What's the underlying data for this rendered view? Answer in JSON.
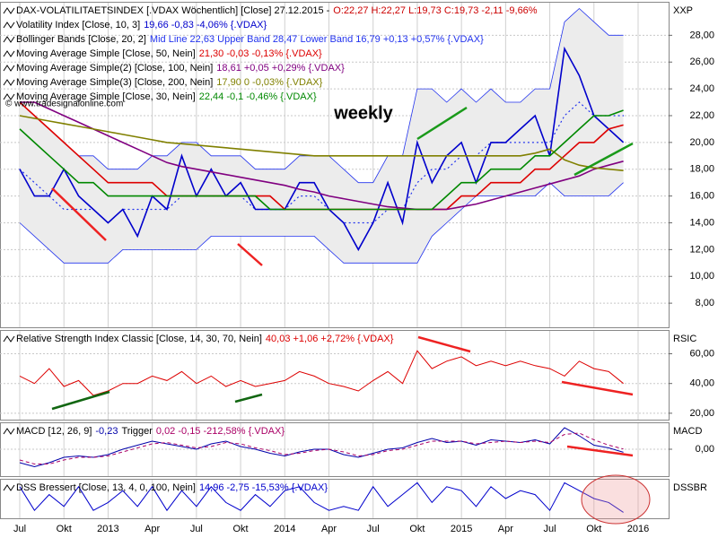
{
  "chart_data": [
    {
      "type": "line",
      "title": "DAX-VOLATILITAETSINDEX [.VDAX  Wöchentlich] [Close] 27.12.2015 -",
      "title_values": "O:22,27 H:22,27 L:19,73 C:19,73 -2,11 -9,66%",
      "axis_label": "XXP",
      "annotations": [
        "weekly",
        "© www.tradesignalonline.com"
      ],
      "grid": true,
      "ylim": [
        6.2,
        30.5
      ],
      "yticks": [
        {
          "value": 8,
          "label": "8,00"
        },
        {
          "value": 10,
          "label": "10,00"
        },
        {
          "value": 12,
          "label": "12,00"
        },
        {
          "value": 14,
          "label": "14,00"
        },
        {
          "value": 16,
          "label": "16,00"
        },
        {
          "value": 18,
          "label": "18,00"
        },
        {
          "value": 20,
          "label": "20,00"
        },
        {
          "value": 22,
          "label": "22,00"
        },
        {
          "value": 24,
          "label": "24,00"
        },
        {
          "value": 26,
          "label": "26,00"
        },
        {
          "value": 28,
          "label": "28,00"
        }
      ],
      "bands": {
        "name": "Bollinger Bands [Close, 20, 2]",
        "legend_values": "Mid Line 22,63 Upper Band 28,47 Lower Band 16,79 +0,13 +0,57% {.VDAX}",
        "color": "#2233ee",
        "fill": "#ececec",
        "upper": [
          23,
          22,
          21,
          20,
          19,
          19,
          18,
          18,
          18,
          19,
          19,
          20,
          20,
          19,
          19,
          19,
          18,
          18,
          18,
          19,
          19,
          19,
          18,
          17,
          17,
          19,
          19,
          24,
          24,
          23,
          24,
          23,
          24,
          23,
          23,
          24,
          24,
          29,
          30,
          29,
          28,
          28,
          null
        ],
        "lower": [
          14,
          13,
          12,
          11,
          11,
          11,
          11,
          12,
          12,
          12,
          12,
          12,
          12,
          13,
          13,
          13,
          13,
          13,
          13,
          13,
          13,
          12,
          11,
          11,
          11,
          11,
          11,
          11,
          13,
          14,
          15,
          16,
          16,
          16,
          16,
          16,
          17,
          16,
          16,
          16,
          16,
          17,
          null
        ],
        "mid": [
          18,
          17,
          16,
          15,
          15,
          15,
          14,
          15,
          15,
          15,
          15,
          16,
          16,
          16,
          16,
          16,
          15,
          15,
          15,
          16,
          16,
          15,
          14,
          14,
          14,
          15,
          15,
          17,
          18,
          18,
          19,
          19,
          20,
          20,
          20,
          20,
          20,
          22,
          23,
          22,
          22,
          22,
          null
        ]
      },
      "series": [
        {
          "name": "Volatility Index [Close, 10, 3]",
          "legend_values": "19,66 -0,83 -4,06% {.VDAX}",
          "color": "#0000cc",
          "width": 1.6,
          "values": [
            18,
            16,
            16,
            18,
            16,
            15,
            14,
            15,
            13,
            16,
            15,
            19,
            16,
            18,
            16,
            17,
            15,
            15,
            15,
            17,
            17,
            15,
            14,
            12,
            14,
            17,
            14,
            20,
            17,
            19,
            20,
            17,
            20,
            20,
            21,
            22,
            19,
            27,
            25,
            22,
            21,
            20,
            null
          ]
        },
        {
          "name": "Moving Average Simple [Close, 50, Nein]",
          "legend_values": "21,30 -0,03 -0,13% {.VDAX}",
          "color": "#dd0000",
          "width": 1.6,
          "values": [
            23,
            22,
            21,
            20,
            19,
            18,
            17,
            17,
            17,
            17,
            16,
            16,
            16,
            16,
            16,
            16,
            16,
            16,
            15,
            15,
            15,
            15,
            15,
            15,
            15,
            15,
            15,
            15,
            15,
            15,
            16,
            16,
            17,
            17,
            17,
            18,
            18,
            19,
            20,
            20,
            21,
            21.3,
            null
          ]
        },
        {
          "name": "Moving Average Simple(2) [Close, 100, Nein]",
          "legend_values": "18,61 +0,05 +0,29% {.VDAX}",
          "color": "#800080",
          "width": 1.6,
          "values": [
            23,
            23,
            22.5,
            22,
            21.5,
            21,
            20.5,
            20,
            19.5,
            19,
            18.5,
            18.2,
            18,
            17.8,
            17.6,
            17.4,
            17.2,
            17,
            16.8,
            16.5,
            16.3,
            16,
            15.8,
            15.6,
            15.4,
            15.2,
            15.1,
            15,
            15,
            15,
            15.2,
            15.4,
            15.7,
            16,
            16.3,
            16.6,
            16.9,
            17.2,
            17.5,
            18,
            18.3,
            18.6,
            null
          ]
        },
        {
          "name": "Moving Average Simple(3) [Close, 200, Nein]",
          "legend_values": "17,90 0 -0,03% {.VDAX}",
          "color": "#808000",
          "width": 1.6,
          "values": [
            22,
            21.8,
            21.6,
            21.4,
            21.2,
            21,
            20.8,
            20.6,
            20.4,
            20.2,
            20,
            19.9,
            19.8,
            19.7,
            19.6,
            19.5,
            19.4,
            19.3,
            19.2,
            19.1,
            19,
            19,
            19,
            19,
            19,
            19,
            19,
            19,
            19,
            19,
            19,
            19,
            19,
            19,
            19,
            19.2,
            19.5,
            18.7,
            18.3,
            18.1,
            18,
            17.9,
            null
          ]
        },
        {
          "name": "Moving Average Simple [Close, 30, Nein]",
          "legend_values": "22,44 -0,1 -0,46% {.VDAX}",
          "color": "#008800",
          "width": 1.6,
          "values": [
            21,
            20,
            19,
            18,
            17,
            17,
            16,
            16,
            16,
            16,
            16,
            16,
            16,
            16,
            16,
            16,
            16,
            15,
            15,
            15,
            15,
            15,
            15,
            15,
            15,
            15,
            15,
            15,
            15,
            16,
            17,
            17,
            18,
            18,
            18,
            19,
            19,
            20,
            21,
            22,
            22,
            22.4,
            null
          ]
        }
      ]
    },
    {
      "type": "line",
      "axis_label": "RSIC",
      "grid": true,
      "ylim": [
        15.7,
        76
      ],
      "yticks": [
        {
          "value": 20,
          "label": "20,00"
        },
        {
          "value": 40,
          "label": "40,00"
        },
        {
          "value": 60,
          "label": "60,00"
        }
      ],
      "series": [
        {
          "name": "Relative Strength Index Classic [Close, 14, 30, 70, Nein]",
          "legend_values": "40,03 +1,06 +2,72% {.VDAX}",
          "color": "#dd0000",
          "width": 1,
          "values": [
            45,
            40,
            50,
            38,
            42,
            32,
            35,
            40,
            40,
            45,
            42,
            48,
            40,
            45,
            38,
            42,
            38,
            40,
            42,
            48,
            45,
            40,
            38,
            35,
            42,
            48,
            40,
            62,
            50,
            55,
            58,
            52,
            55,
            52,
            55,
            52,
            50,
            45,
            55,
            50,
            48,
            40,
            null
          ]
        }
      ]
    },
    {
      "type": "line",
      "axis_label": "MACD",
      "grid": true,
      "ylim": [
        -2,
        2
      ],
      "yticks": [
        {
          "value": 0,
          "label": "0,00"
        }
      ],
      "series": [
        {
          "name": "MACD [12, 26, 9]",
          "legend_values": "-0,23",
          "color": "#0000aa",
          "width": 1,
          "values": [
            -1,
            -1.3,
            -1,
            -0.6,
            -0.5,
            -0.6,
            -0.4,
            0,
            0.3,
            0.6,
            0.4,
            0.2,
            0,
            0.4,
            0.6,
            0.2,
            0,
            -0.3,
            -0.5,
            -0.2,
            0,
            0,
            -0.4,
            -0.6,
            -0.3,
            0,
            0.1,
            0.5,
            0.8,
            0.5,
            0.6,
            0.3,
            0.7,
            0.6,
            0.5,
            0.7,
            0.4,
            1.6,
            1.0,
            0.3,
            0.1,
            -0.23,
            null
          ]
        },
        {
          "name": "Trigger",
          "legend_values": "0,02 -0,15 -212,58% {.VDAX}",
          "color": "#aa0066",
          "width": 1,
          "dash": true,
          "values": [
            -0.8,
            -1.1,
            -1.1,
            -0.8,
            -0.6,
            -0.6,
            -0.5,
            -0.2,
            0.1,
            0.4,
            0.5,
            0.3,
            0.1,
            0.2,
            0.5,
            0.4,
            0.1,
            -0.1,
            -0.4,
            -0.3,
            -0.1,
            0,
            -0.2,
            -0.5,
            -0.4,
            -0.1,
            0,
            0.3,
            0.6,
            0.6,
            0.6,
            0.4,
            0.5,
            0.6,
            0.5,
            0.6,
            0.5,
            1.1,
            1.2,
            0.7,
            0.3,
            0.02,
            null
          ]
        }
      ]
    },
    {
      "type": "line",
      "axis_label": "DSSBR",
      "ylim": [
        0,
        100
      ],
      "categories": [
        "Jul",
        null,
        null,
        "Okt",
        null,
        null,
        "2013",
        null,
        null,
        "Apr",
        null,
        null,
        "Jul",
        null,
        null,
        "Okt",
        null,
        null,
        "2014",
        null,
        null,
        "Apr",
        null,
        null,
        "Jul",
        null,
        null,
        "Okt",
        null,
        null,
        "2015",
        null,
        null,
        "Apr",
        null,
        null,
        "Jul",
        null,
        null,
        "Okt",
        null,
        null,
        "2016"
      ],
      "series": [
        {
          "name": "DSS Bressert [Close, 13, 4, 0, 100, Nein]",
          "legend_values": "14,96 -2,75 -15,53% {.VDAX}",
          "color": "#0000cc",
          "width": 1,
          "values": [
            80,
            20,
            60,
            30,
            80,
            20,
            40,
            70,
            30,
            80,
            20,
            70,
            30,
            80,
            40,
            20,
            60,
            30,
            70,
            80,
            40,
            20,
            30,
            20,
            80,
            30,
            60,
            90,
            40,
            80,
            70,
            30,
            80,
            50,
            70,
            60,
            20,
            90,
            70,
            50,
            40,
            15,
            null
          ]
        }
      ]
    }
  ]
}
